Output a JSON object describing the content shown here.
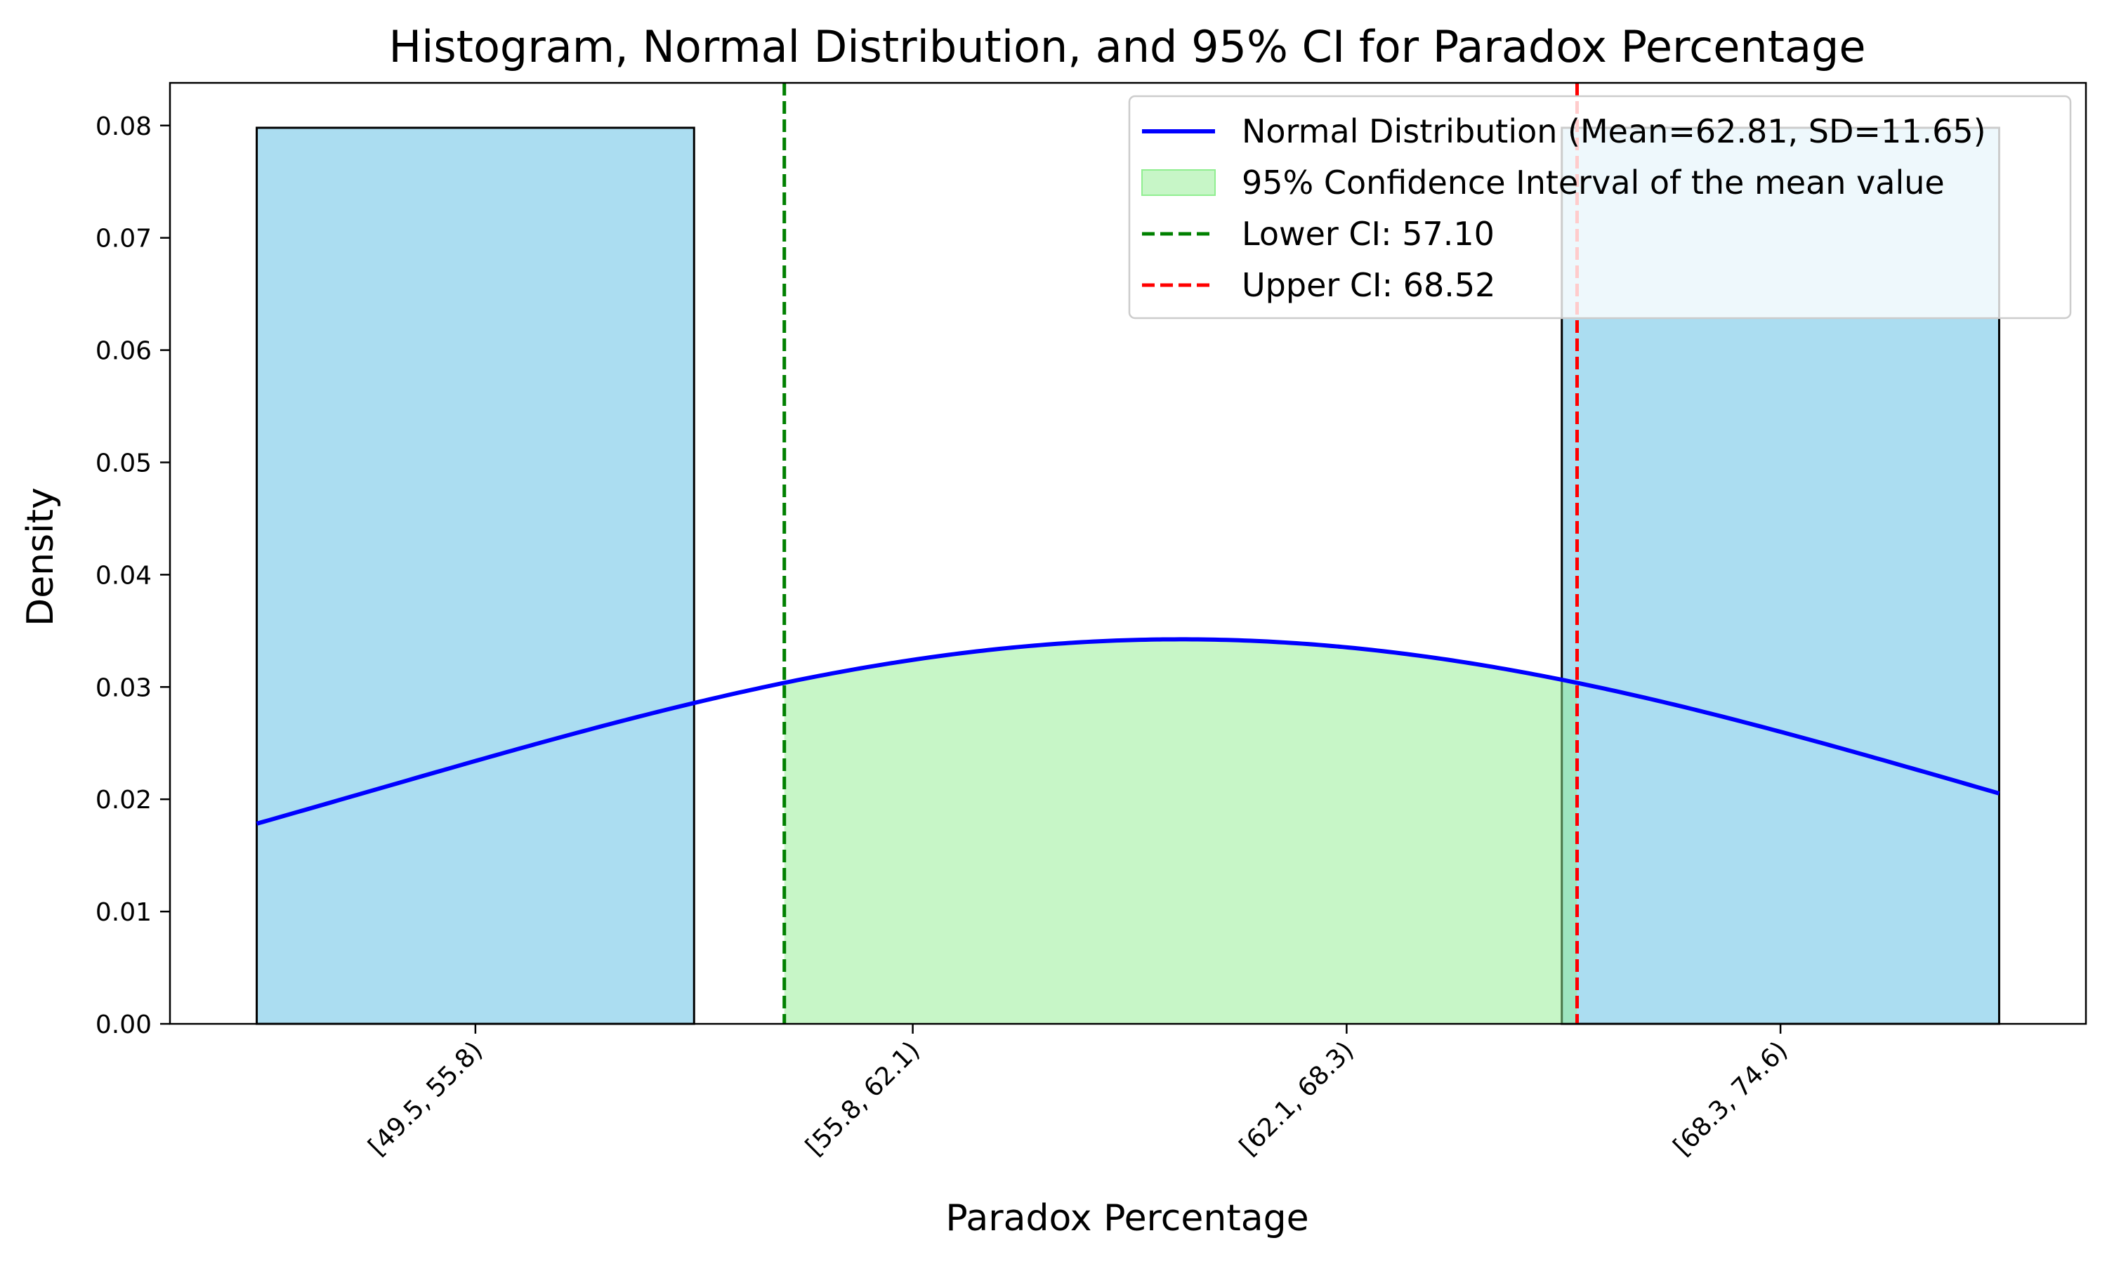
{
  "chart_data": {
    "type": "bar",
    "title": "Histogram, Normal Distribution, and 95% CI for Paradox Percentage",
    "xlabel": "Paradox Percentage",
    "ylabel": "Density",
    "categories": [
      "[49.5, 55.8)",
      "[55.8, 62.1)",
      "[62.1, 68.3)",
      "[68.3, 74.6)"
    ],
    "bin_edges": [
      49.5,
      55.8,
      62.1,
      68.3,
      74.6
    ],
    "values": [
      0.0798,
      0,
      0,
      0.0798
    ],
    "xlim": [
      48.25,
      75.85
    ],
    "ylim": [
      0,
      0.0838
    ],
    "yticks": [
      "0.00",
      "0.01",
      "0.02",
      "0.03",
      "0.04",
      "0.05",
      "0.06",
      "0.07",
      "0.08"
    ],
    "ytick_values": [
      0,
      0.01,
      0.02,
      0.03,
      0.04,
      0.05,
      0.06,
      0.07,
      0.08
    ],
    "normal": {
      "mean": 62.81,
      "sd": 11.65
    },
    "ci": {
      "lower": 57.1,
      "upper": 68.52
    },
    "legend": [
      {
        "label": "Normal Distribution (Mean=62.81, SD=11.65)",
        "style": "line",
        "color": "#0000ff"
      },
      {
        "label": "95% Confidence Interval of the mean value",
        "style": "fill",
        "color": "#90ee90"
      },
      {
        "label": "Lower CI: 57.10",
        "style": "dashed",
        "color": "#008000"
      },
      {
        "label": "Upper CI: 68.52",
        "style": "dashed",
        "color": "#ff0000"
      }
    ],
    "legend_position": "upper right",
    "grid": false,
    "colors": {
      "bar_fill": "#87ceeb",
      "bar_edge": "#000000",
      "normal_line": "#0000ff",
      "ci_fill": "#90ee90",
      "lower_ci": "#008000",
      "upper_ci": "#ff0000"
    }
  }
}
